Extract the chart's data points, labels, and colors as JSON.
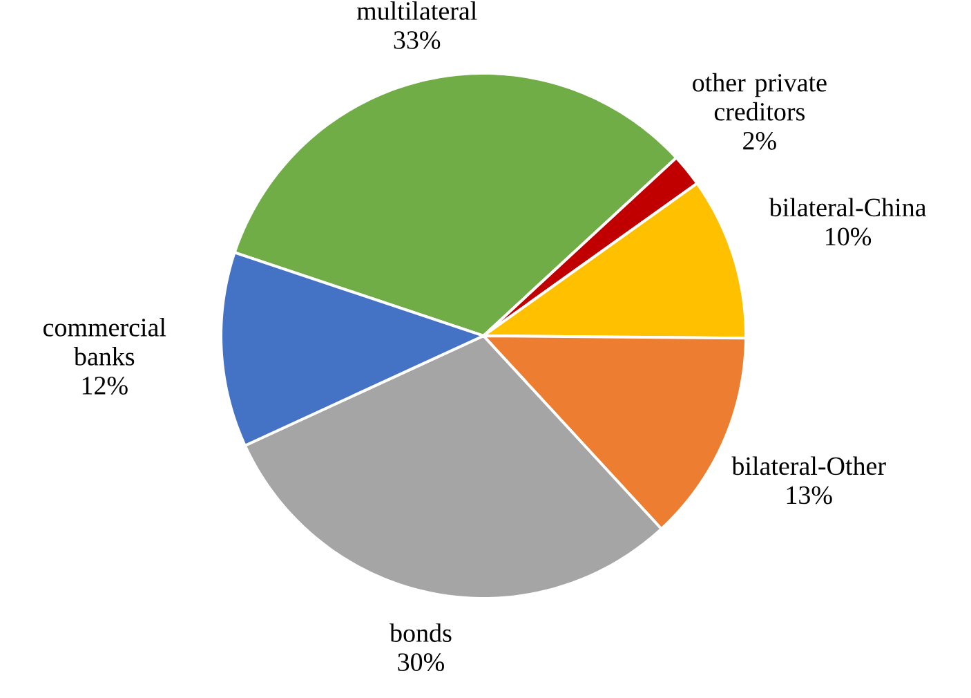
{
  "chart_data": {
    "type": "pie",
    "categories": [
      "multilateral",
      "other private creditors",
      "bilateral-China",
      "bilateral-Other",
      "bonds",
      "commercial banks"
    ],
    "values": [
      33,
      2,
      10,
      13,
      30,
      12
    ],
    "colors": [
      "#70ad47",
      "#c00000",
      "#ffc000",
      "#ed7d31",
      "#a5a5a5",
      "#4472c4"
    ],
    "value_labels": [
      "33%",
      "2%",
      "10%",
      "13%",
      "30%",
      "12%"
    ]
  }
}
